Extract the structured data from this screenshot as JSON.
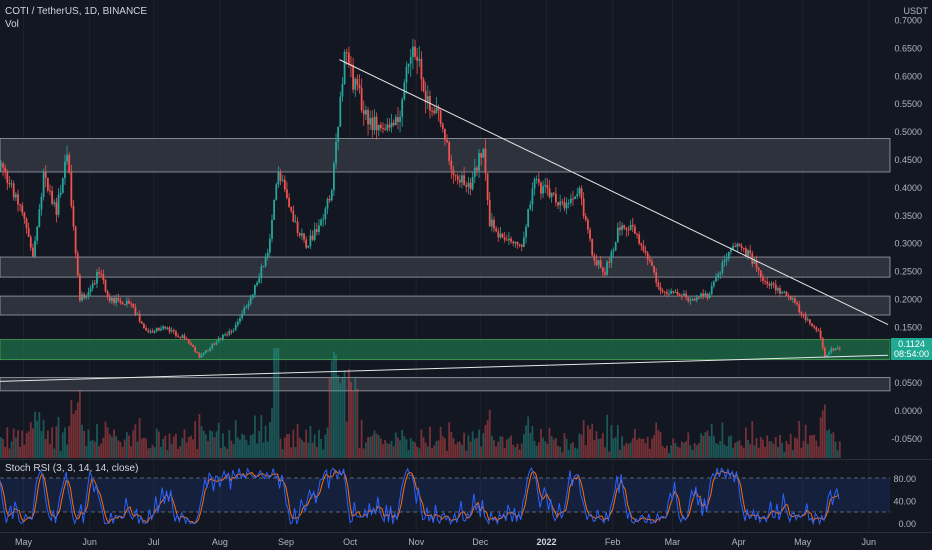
{
  "header": {
    "symbol_line": "COTI / TetherUS, 1D, BINANCE",
    "volume_label": "Vol",
    "currency": "USDT"
  },
  "indicator": {
    "label": "Stoch RSI (3, 3, 14, 14, close)",
    "ticks": [
      "80.00",
      "40.00",
      "0.00"
    ]
  },
  "price_badge": {
    "price": "0.1124",
    "countdown": "08:54:00"
  },
  "colors": {
    "background": "#131722",
    "up": "#26a69a",
    "down": "#ef5350",
    "zone_gray": "#363a45",
    "zone_green": "#1e6f4a",
    "stoch_k": "#2962ff",
    "stoch_d": "#ff6d00"
  },
  "chart_data": {
    "type": "candlestick",
    "x_axis_labels": [
      "May",
      "Jun",
      "Jul",
      "Aug",
      "Sep",
      "Oct",
      "Nov",
      "Dec",
      "2022",
      "Feb",
      "Mar",
      "Apr",
      "May",
      "Jun"
    ],
    "y_axis_labels": [
      "0.7000",
      "0.6500",
      "0.6000",
      "0.5500",
      "0.5000",
      "0.4500",
      "0.4000",
      "0.3500",
      "0.3000",
      "0.2500",
      "0.2000",
      "0.1500",
      "0.1000",
      "0.0500",
      "0.0000",
      "-0.0500"
    ],
    "y_range": [
      -0.07,
      0.71
    ],
    "zones": [
      {
        "from": 0.4285,
        "to": 0.4885,
        "kind": "resistance"
      },
      {
        "from": 0.24,
        "to": 0.276,
        "kind": "resistance"
      },
      {
        "from": 0.172,
        "to": 0.206,
        "kind": "resistance"
      },
      {
        "from": 0.092,
        "to": 0.128,
        "kind": "support"
      },
      {
        "from": 0.036,
        "to": 0.06,
        "kind": "support"
      }
    ],
    "trendlines": [
      {
        "from": [
          "2021-09-26",
          0.63
        ],
        "to": [
          "2022-06-10",
          0.155
        ]
      },
      {
        "from": [
          "2021-04-20",
          0.053
        ],
        "to": [
          "2022-06-10",
          0.1
        ]
      }
    ],
    "price_path": [
      [
        "2021-04-20",
        0.44
      ],
      [
        "2021-05-01",
        0.35
      ],
      [
        "2021-05-05",
        0.27
      ],
      [
        "2021-05-10",
        0.42
      ],
      [
        "2021-05-16",
        0.36
      ],
      [
        "2021-05-21",
        0.46
      ],
      [
        "2021-05-24",
        0.33
      ],
      [
        "2021-05-27",
        0.2
      ],
      [
        "2021-06-01",
        0.22
      ],
      [
        "2021-06-05",
        0.25
      ],
      [
        "2021-06-10",
        0.2
      ],
      [
        "2021-06-20",
        0.19
      ],
      [
        "2021-06-28",
        0.14
      ],
      [
        "2021-07-05",
        0.15
      ],
      [
        "2021-07-15",
        0.13
      ],
      [
        "2021-07-22",
        0.098
      ],
      [
        "2021-07-30",
        0.125
      ],
      [
        "2021-08-08",
        0.15
      ],
      [
        "2021-08-16",
        0.21
      ],
      [
        "2021-08-24",
        0.3
      ],
      [
        "2021-08-28",
        0.44
      ],
      [
        "2021-09-03",
        0.35
      ],
      [
        "2021-09-10",
        0.3
      ],
      [
        "2021-09-16",
        0.33
      ],
      [
        "2021-09-22",
        0.4
      ],
      [
        "2021-09-25",
        0.52
      ],
      [
        "2021-09-28",
        0.64
      ],
      [
        "2021-10-03",
        0.58
      ],
      [
        "2021-10-10",
        0.52
      ],
      [
        "2021-10-18",
        0.5
      ],
      [
        "2021-10-24",
        0.54
      ],
      [
        "2021-10-30",
        0.67
      ],
      [
        "2021-11-05",
        0.56
      ],
      [
        "2021-11-12",
        0.52
      ],
      [
        "2021-11-18",
        0.43
      ],
      [
        "2021-11-26",
        0.4
      ],
      [
        "2021-12-02",
        0.48
      ],
      [
        "2021-12-05",
        0.34
      ],
      [
        "2021-12-12",
        0.3
      ],
      [
        "2021-12-20",
        0.3
      ],
      [
        "2021-12-26",
        0.41
      ],
      [
        "2022-01-02",
        0.39
      ],
      [
        "2022-01-09",
        0.36
      ],
      [
        "2022-01-16",
        0.4
      ],
      [
        "2022-01-22",
        0.28
      ],
      [
        "2022-01-28",
        0.25
      ],
      [
        "2022-02-03",
        0.32
      ],
      [
        "2022-02-09",
        0.33
      ],
      [
        "2022-02-16",
        0.29
      ],
      [
        "2022-02-22",
        0.22
      ],
      [
        "2022-03-01",
        0.21
      ],
      [
        "2022-03-10",
        0.2
      ],
      [
        "2022-03-18",
        0.21
      ],
      [
        "2022-03-25",
        0.27
      ],
      [
        "2022-03-31",
        0.3
      ],
      [
        "2022-04-05",
        0.28
      ],
      [
        "2022-04-12",
        0.24
      ],
      [
        "2022-04-18",
        0.22
      ],
      [
        "2022-04-24",
        0.21
      ],
      [
        "2022-05-01",
        0.17
      ],
      [
        "2022-05-08",
        0.145
      ],
      [
        "2022-05-11",
        0.095
      ],
      [
        "2022-05-14",
        0.11
      ],
      [
        "2022-05-18",
        0.1124
      ]
    ]
  }
}
